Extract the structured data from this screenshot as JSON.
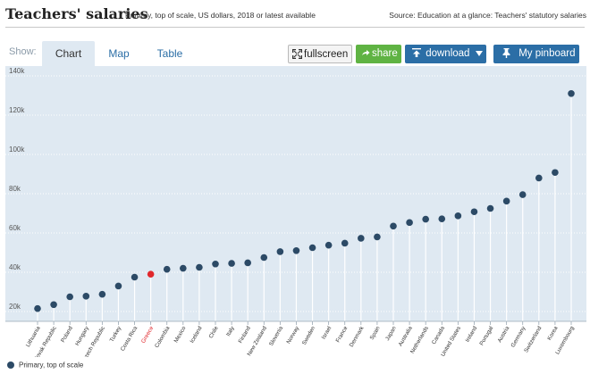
{
  "header": {
    "title": "Teachers' salaries",
    "subtitle": "Primary, top of scale, US dollars, 2018 or latest available",
    "source": "Source: Education at a glance: Teachers' statutory salaries"
  },
  "toolbar": {
    "show_label": "Show:",
    "tabs": [
      {
        "label": "Chart",
        "active": true
      },
      {
        "label": "Map",
        "active": false
      },
      {
        "label": "Table",
        "active": false
      }
    ],
    "fullscreen_label": "fullscreen",
    "share_label": "share",
    "download_label": "download",
    "pinboard_label": "My pinboard"
  },
  "colors": {
    "series": "#2c4a66",
    "highlight": "#e0282c",
    "plot_bg": "#dfe9f2",
    "accent": "#2b6ea6",
    "share": "#5fb343"
  },
  "chart_data": {
    "type": "scatter",
    "title": "Teachers' salaries",
    "subtitle": "Primary, top of scale, US dollars, 2018 or latest available",
    "ylim": [
      15000,
      145000
    ],
    "yticks": [
      20000,
      40000,
      60000,
      80000,
      100000,
      120000,
      140000
    ],
    "ytick_labels": [
      "20k",
      "40k",
      "60k",
      "80k",
      "100k",
      "120k",
      "140k"
    ],
    "grid": true,
    "legend_position": "bottom-left",
    "highlight": "Greece",
    "categories": [
      "Lithuania",
      "Slovak Republic",
      "Poland",
      "Hungary",
      "Czech Republic",
      "Turkey",
      "Costa Rica",
      "Greece",
      "Colombia",
      "Mexico",
      "Iceland",
      "Chile",
      "Italy",
      "Finland",
      "New Zealand",
      "Slovenia",
      "Norway",
      "Sweden",
      "Israel",
      "France",
      "Denmark",
      "Spain",
      "Japan",
      "Australia",
      "Netherlands",
      "Canada",
      "United States",
      "Ireland",
      "Portugal",
      "Austria",
      "Germany",
      "Switzerland",
      "Korea",
      "Luxembourg"
    ],
    "series": [
      {
        "name": "Primary, top of scale",
        "values": [
          21500,
          23500,
          27500,
          27800,
          28800,
          33000,
          37500,
          39000,
          41500,
          42000,
          42500,
          44200,
          44500,
          44800,
          47500,
          50500,
          51000,
          52500,
          53800,
          54800,
          57300,
          58000,
          63500,
          65300,
          67000,
          67200,
          68700,
          70800,
          72500,
          76200,
          79500,
          88000,
          90800,
          131000
        ]
      }
    ]
  }
}
